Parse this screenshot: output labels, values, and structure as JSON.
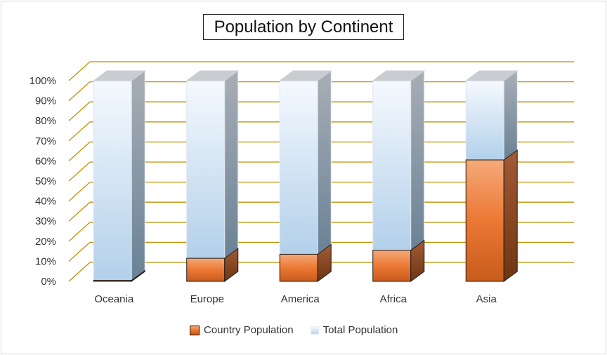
{
  "chart_data": {
    "type": "bar",
    "stacked": "percent",
    "title": "Population by Continent",
    "categories": [
      "Oceania",
      "Europe",
      "America",
      "Africa",
      "Asia"
    ],
    "series": [
      {
        "name": "Country Population",
        "values": [
          0.5,
          11.5,
          13.5,
          15.5,
          60.5
        ],
        "color": "#ed7d31"
      },
      {
        "name": "Total Population",
        "values": [
          99.5,
          88.5,
          86.5,
          84.5,
          39.5
        ],
        "color": "#bdd7ee"
      }
    ],
    "y_ticks": [
      "0%",
      "10%",
      "20%",
      "30%",
      "40%",
      "50%",
      "60%",
      "70%",
      "80%",
      "90%",
      "100%"
    ],
    "ylim": [
      0,
      100
    ],
    "grid": true,
    "legend_position": "bottom",
    "gridline_color": "#bf9000"
  }
}
